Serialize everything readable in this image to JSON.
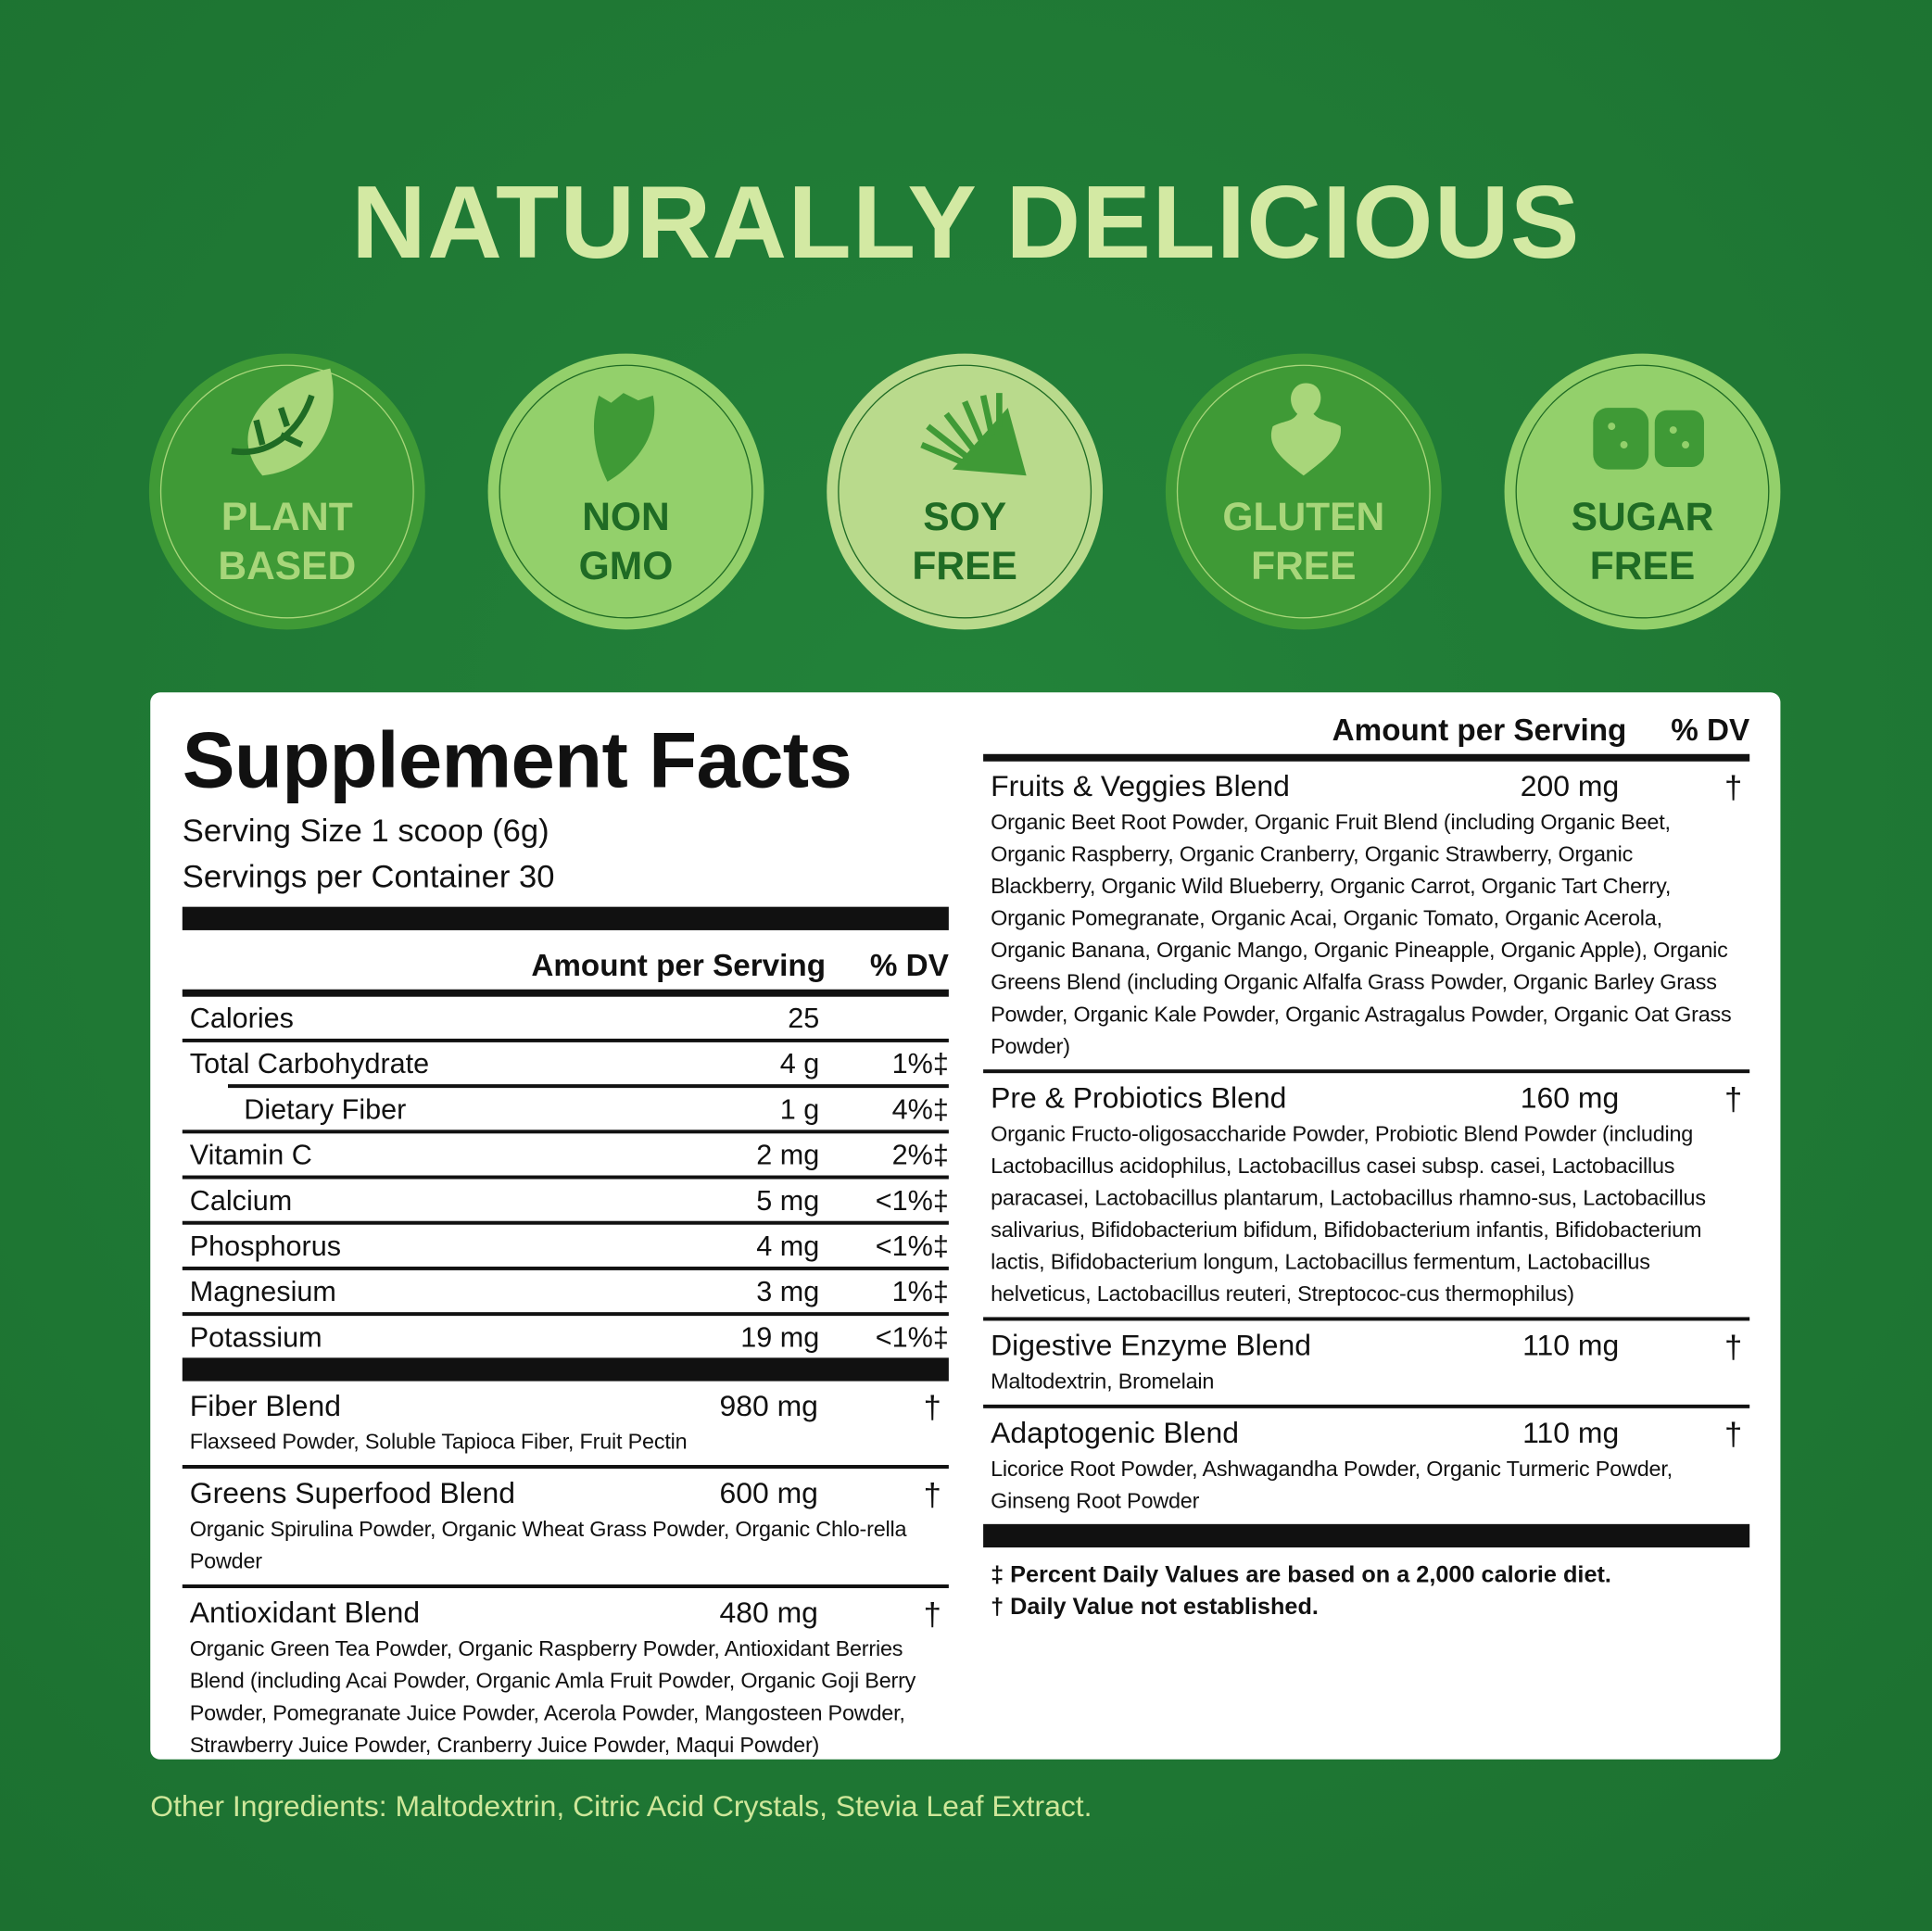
{
  "title": "NATURALLY DELICIOUS",
  "colors": {
    "background": "#1f7a30",
    "title": "#d3e9a3",
    "panel": "#ffffff"
  },
  "badges": [
    {
      "line1": "PLANT",
      "line2": "BASED",
      "icon": "leaf-icon",
      "bg": "#3f9a36",
      "fg": "#a8d67a"
    },
    {
      "line1": "NON",
      "line2": "GMO",
      "icon": "pepper-icon",
      "bg": "#93d06b",
      "fg": "#1f6b24"
    },
    {
      "line1": "SOY",
      "line2": "FREE",
      "icon": "soybean-icon",
      "bg": "#b9da8c",
      "fg": "#1f6b24"
    },
    {
      "line1": "GLUTEN",
      "line2": "FREE",
      "icon": "wheat-icon",
      "bg": "#3f9a36",
      "fg": "#a8d67a"
    },
    {
      "line1": "SUGAR",
      "line2": "FREE",
      "icon": "sugar-cubes-icon",
      "bg": "#93d06b",
      "fg": "#1f6b24"
    }
  ],
  "facts": {
    "heading": "Supplement Facts",
    "serving_size": "Serving Size 1 scoop (6g)",
    "servings_per_container": "Servings per Container 30",
    "amount_header": "Amount per Serving",
    "dv_header": "% DV",
    "nutrients": [
      {
        "name": "Calories",
        "amount": "25",
        "dv": ""
      },
      {
        "name": "Total Carbohydrate",
        "amount": "4 g",
        "dv": "1%‡"
      },
      {
        "name": "Dietary Fiber",
        "amount": "1 g",
        "dv": "4%‡"
      },
      {
        "name": "Vitamin C",
        "amount": "2 mg",
        "dv": "2%‡"
      },
      {
        "name": "Calcium",
        "amount": "5 mg",
        "dv": "<1%‡"
      },
      {
        "name": "Phosphorus",
        "amount": "4 mg",
        "dv": "<1%‡"
      },
      {
        "name": "Magnesium",
        "amount": "3 mg",
        "dv": "1%‡"
      },
      {
        "name": "Potassium",
        "amount": "19 mg",
        "dv": "<1%‡"
      }
    ],
    "blends_left": [
      {
        "name": "Fiber Blend",
        "amount": "980 mg",
        "dv": "†",
        "desc": "Flaxseed Powder, Soluble Tapioca Fiber, Fruit Pectin"
      },
      {
        "name": "Greens Superfood Blend",
        "amount": "600 mg",
        "dv": "†",
        "desc": "Organic Spirulina Powder, Organic Wheat Grass Powder, Organic Chlo-rella Powder"
      },
      {
        "name": "Antioxidant Blend",
        "amount": "480 mg",
        "dv": "†",
        "desc": "Organic Green Tea Powder, Organic Raspberry Powder, Antioxidant Berries Blend (including Acai Powder, Organic Amla Fruit Powder, Organic Goji Berry Powder, Pomegranate Juice Powder, Acerola Powder, Mangosteen Powder, Strawberry Juice Powder, Cranberry Juice Powder, Maqui Powder)"
      }
    ],
    "blends_right": [
      {
        "name": "Fruits & Veggies Blend",
        "amount": "200 mg",
        "dv": "†",
        "desc": "Organic Beet Root Powder, Organic Fruit Blend (including Organic Beet, Organic Raspberry, Organic Cranberry, Organic Strawberry, Organic Blackberry, Organic Wild Blueberry, Organic Carrot, Organic Tart Cherry, Organic Pomegranate, Organic Acai, Organic Tomato, Organic Acerola, Organic Banana, Organic Mango, Organic Pineapple, Organic Apple), Organic Greens Blend (including Organic Alfalfa Grass Powder, Organic Barley Grass Powder, Organic Kale Powder, Organic Astragalus Powder, Organic Oat Grass Powder)"
      },
      {
        "name": "Pre & Probiotics Blend",
        "amount": "160 mg",
        "dv": "†",
        "desc": "Organic Fructo-oligosaccharide Powder, Probiotic Blend Powder (including Lactobacillus acidophilus, Lactobacillus casei subsp. casei, Lactobacillus paracasei, Lactobacillus plantarum, Lactobacillus rhamno-sus, Lactobacillus salivarius, Bifidobacterium bifidum, Bifidobacterium infantis, Bifidobacterium lactis, Bifidobacterium longum, Lactobacillus fermentum, Lactobacillus helveticus, Lactobacillus reuteri, Streptococ-cus thermophilus)"
      },
      {
        "name": "Digestive Enzyme Blend",
        "amount": "110 mg",
        "dv": "†",
        "desc": "Maltodextrin, Bromelain"
      },
      {
        "name": "Adaptogenic Blend",
        "amount": "110 mg",
        "dv": "†",
        "desc": "Licorice Root Powder, Ashwagandha Powder, Organic Turmeric Powder, Ginseng Root Powder"
      }
    ],
    "footnotes": [
      "‡ Percent Daily Values are based on a 2,000 calorie diet.",
      "† Daily Value not established."
    ]
  },
  "other_ingredients": "Other Ingredients: Maltodextrin, Citric Acid Crystals, Stevia Leaf Extract."
}
